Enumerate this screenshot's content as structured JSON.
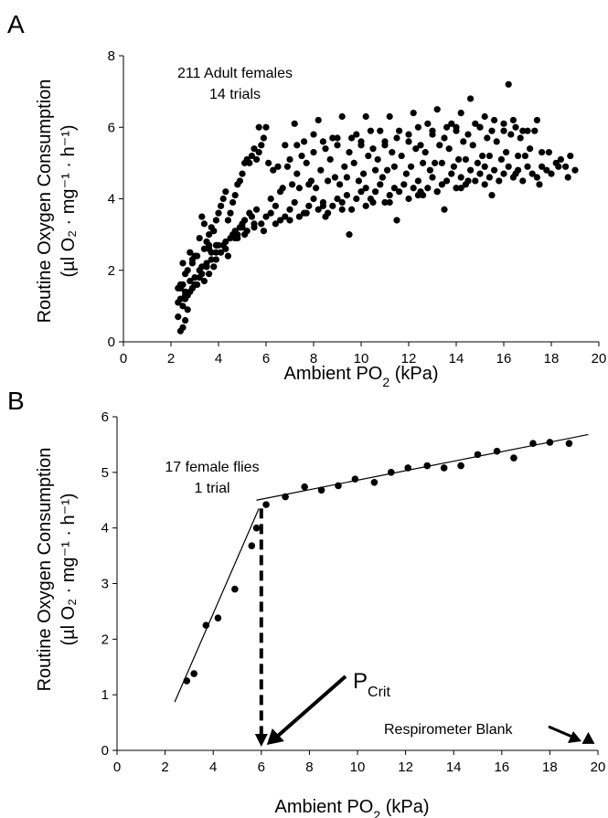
{
  "chart_data": [
    {
      "type": "scatter",
      "panel_label": "A",
      "annotation": [
        "211 Adult females",
        "14 trials"
      ],
      "xlabel": {
        "main": "Ambient PO",
        "sub": "2",
        "unit": " (kPa)"
      },
      "ylabel": {
        "line1": "Routine Oxygen Consumption",
        "line2": "(µl O₂ · mg⁻¹ · h⁻¹)"
      },
      "xlim": [
        0,
        20
      ],
      "ylim": [
        0,
        8
      ],
      "xticks": [
        0,
        2,
        4,
        6,
        8,
        10,
        12,
        14,
        16,
        18,
        20
      ],
      "yticks": [
        0,
        2,
        4,
        6,
        8
      ],
      "marker_color": "#000000",
      "series": [
        {
          "x": [
            2.3,
            2.5,
            2.4,
            2.6,
            2.7,
            2.4,
            2.5,
            2.6,
            2.4,
            2.3,
            2.7,
            2.8,
            2.6,
            2.5,
            2.9,
            3.0,
            3.1,
            3.2,
            3.3,
            3.0,
            2.8,
            2.9,
            3.4,
            3.5,
            3.6,
            3.7,
            3.2,
            3.4,
            3.6,
            3.3,
            3.8,
            3.9,
            4.0,
            4.1,
            4.2,
            4.3,
            3.5,
            3.7,
            4.4,
            4.5,
            4.6,
            4.7,
            4.8,
            4.9,
            5.0,
            5.1,
            5.2,
            5.3,
            5.4,
            5.5,
            5.6,
            5.7,
            5.8,
            5.9,
            6.0,
            4.8,
            5.0,
            5.2,
            5.5,
            5.8,
            6.0,
            6.2,
            6.4,
            6.6,
            6.8,
            7.0,
            7.2,
            7.4,
            7.6,
            7.8,
            8.0,
            8.2,
            8.4,
            8.6,
            8.8,
            9.0,
            9.2,
            9.4,
            9.6,
            9.8,
            10.0,
            10.2,
            10.4,
            10.6,
            10.8,
            11.0,
            11.2,
            11.4,
            11.6,
            11.8,
            12.0,
            12.2,
            12.4,
            12.6,
            12.8,
            13.0,
            13.2,
            13.4,
            13.6,
            13.8,
            14.0,
            14.2,
            14.4,
            14.6,
            14.8,
            15.0,
            15.2,
            15.4,
            15.6,
            15.8,
            16.0,
            16.2,
            16.4,
            16.6,
            16.8,
            17.0,
            17.2,
            17.4,
            17.6,
            17.8,
            18.0,
            18.2,
            18.4,
            18.6,
            18.8,
            19.0,
            6.1,
            6.5,
            7.0,
            7.5,
            8.0,
            8.5,
            9.0,
            9.5,
            10.0,
            10.5,
            11.0,
            11.5,
            12.0,
            12.5,
            13.0,
            13.5,
            14.0,
            14.5,
            15.0,
            15.5,
            16.0,
            16.5,
            17.0,
            6.3,
            6.9,
            7.3,
            7.7,
            8.3,
            8.7,
            9.3,
            9.7,
            10.3,
            10.7,
            11.3,
            11.7,
            12.3,
            12.7,
            13.3,
            13.7,
            14.3,
            14.7,
            15.3,
            15.7,
            16.3,
            16.7,
            17.3,
            6.7,
            7.1,
            7.9,
            8.1,
            8.9,
            9.1,
            9.9,
            10.1,
            10.9,
            11.1,
            11.9,
            12.1,
            12.9,
            13.1,
            13.9,
            14.1,
            14.9,
            15.1,
            15.9,
            16.1,
            16.9,
            17.1,
            17.9,
            5.7,
            7.2,
            8.2,
            9.2,
            10.2,
            11.2,
            12.2,
            13.2,
            14.2,
            15.2,
            16.2,
            7.3,
            8.4,
            9.6,
            10.8,
            12.4,
            13.8,
            14.6,
            16.4,
            4.2,
            4.6,
            5.0,
            5.4,
            4.4,
            4.8,
            5.6,
            3.9,
            4.1,
            4.3,
            4.5,
            4.7,
            4.9,
            5.1,
            5.3,
            2.6,
            2.8,
            3.0,
            3.2,
            2.7,
            2.9,
            3.1,
            3.3,
            3.5,
            3.7,
            3.9,
            4.0,
            2.5,
            2.4,
            2.6,
            2.3,
            3.4,
            3.6,
            3.8,
            6.2,
            6.6,
            7.4,
            7.8,
            8.6,
            9.4,
            10.6,
            11.4,
            12.6,
            13.4,
            14.4,
            15.4,
            16.6,
            17.6,
            18.3,
            18.7,
            6.8,
            7.6,
            8.8,
            9.8,
            10.4,
            11.6,
            12.8,
            13.6,
            14.8,
            15.6,
            16.8,
            17.4,
            8.0,
            9.0,
            10.0,
            11.0,
            12.0,
            13.0,
            14.0,
            15.0,
            16.0,
            9.5,
            11.5,
            13.5,
            15.5,
            17.5,
            8.5,
            10.5,
            12.5,
            14.5,
            16.5,
            6.4,
            7.0,
            7.7,
            8.4,
            9.2,
            10.2,
            11.2,
            12.4,
            13.2,
            14.2,
            15.2,
            5.9,
            5.5,
            5.1,
            4.7,
            4.3,
            3.9,
            3.6
          ],
          "y": [
            0.7,
            0.4,
            0.3,
            0.6,
            0.9,
            1.2,
            1.0,
            1.4,
            1.6,
            1.5,
            1.3,
            1.7,
            1.9,
            2.2,
            1.5,
            1.8,
            1.6,
            2.0,
            2.1,
            2.4,
            2.5,
            2.3,
            2.6,
            2.8,
            3.0,
            3.2,
            2.9,
            3.3,
            2.7,
            3.5,
            3.1,
            3.4,
            3.6,
            3.8,
            4.0,
            4.2,
            2.2,
            2.5,
            3.4,
            3.6,
            3.9,
            4.1,
            4.4,
            4.5,
            4.7,
            5.0,
            5.1,
            5.0,
            5.2,
            5.4,
            5.1,
            5.3,
            5.5,
            5.7,
            6.0,
            3.0,
            3.2,
            3.1,
            3.3,
            3.3,
            3.5,
            3.6,
            3.8,
            3.4,
            3.5,
            3.7,
            3.9,
            3.5,
            3.6,
            3.8,
            4.0,
            3.7,
            3.9,
            3.6,
            3.8,
            4.0,
            3.9,
            4.1,
            3.7,
            4.0,
            4.2,
            4.3,
            4.0,
            4.2,
            4.4,
            3.9,
            4.1,
            4.3,
            4.2,
            4.4,
            4.0,
            4.3,
            4.5,
            4.1,
            4.3,
            4.6,
            4.2,
            4.4,
            4.5,
            4.7,
            4.3,
            4.6,
            4.4,
            4.8,
            4.5,
            4.7,
            4.9,
            4.6,
            4.8,
            4.5,
            4.7,
            4.9,
            4.6,
            4.8,
            4.5,
            4.9,
            4.7,
            4.6,
            4.9,
            4.8,
            4.7,
            5.0,
            5.1,
            4.9,
            5.2,
            4.8,
            5.0,
            4.9,
            5.1,
            5.2,
            5.3,
            5.4,
            5.5,
            5.3,
            5.6,
            5.4,
            5.5,
            5.7,
            5.6,
            5.5,
            5.8,
            5.7,
            5.9,
            5.8,
            6.0,
            5.9,
            6.1,
            6.0,
            5.9,
            4.8,
            4.9,
            4.7,
            5.0,
            4.8,
            5.1,
            4.9,
            5.0,
            5.2,
            5.1,
            5.3,
            5.2,
            5.4,
            5.3,
            5.5,
            5.4,
            5.6,
            5.5,
            5.7,
            5.6,
            5.8,
            5.7,
            5.9,
            4.3,
            4.4,
            4.5,
            4.3,
            4.6,
            4.4,
            4.5,
            4.7,
            4.6,
            4.8,
            4.7,
            4.9,
            4.8,
            5.0,
            4.9,
            5.1,
            5.0,
            5.2,
            5.1,
            5.3,
            5.2,
            5.4,
            5.3,
            6.0,
            6.1,
            6.2,
            6.3,
            6.3,
            6.3,
            6.4,
            6.5,
            6.4,
            6.3,
            7.2,
            5.5,
            5.6,
            5.7,
            5.9,
            6.0,
            6.1,
            6.8,
            6.2,
            2.7,
            3.0,
            3.3,
            3.5,
            2.4,
            2.9,
            3.7,
            2.3,
            2.5,
            2.6,
            2.9,
            3.1,
            3.2,
            3.4,
            3.6,
            1.2,
            1.4,
            1.6,
            1.8,
            2.0,
            2.2,
            2.4,
            1.9,
            2.1,
            2.3,
            2.5,
            2.7,
            1.6,
            1.5,
            1.3,
            1.1,
            1.7,
            1.9,
            2.1,
            4.0,
            4.2,
            4.3,
            4.4,
            4.5,
            4.6,
            4.8,
            4.9,
            5.0,
            5.0,
            5.1,
            5.2,
            5.2,
            5.3,
            4.9,
            4.6,
            5.5,
            5.6,
            5.7,
            5.8,
            5.9,
            5.9,
            6.1,
            6.0,
            6.1,
            6.2,
            5.9,
            6.2,
            5.8,
            5.7,
            5.5,
            5.6,
            5.8,
            5.9,
            6.0,
            6.0,
            5.9,
            3.0,
            3.4,
            3.7,
            4.1,
            4.4,
            3.5,
            3.9,
            4.2,
            4.5,
            4.7,
            3.3,
            3.4,
            3.6,
            3.8,
            3.7,
            3.8,
            3.9,
            4.1,
            4.2,
            4.3,
            4.4,
            3.1,
            3.2,
            3.0,
            2.9,
            2.8,
            2.7,
            2.6
          ]
        }
      ]
    },
    {
      "type": "scatter",
      "panel_label": "B",
      "annotation": [
        "17 female flies",
        "1 trial"
      ],
      "xlabel": {
        "main": "Ambient PO",
        "sub": "2",
        "unit": " (kPa)"
      },
      "ylabel": {
        "line1": "Routine Oxygen Consumption",
        "line2": "(µl O₂ · mg⁻¹ · h⁻¹)"
      },
      "xlim": [
        0,
        20
      ],
      "ylim": [
        0,
        6
      ],
      "xticks": [
        0,
        2,
        4,
        6,
        8,
        10,
        12,
        14,
        16,
        18,
        20
      ],
      "yticks": [
        0,
        1,
        2,
        3,
        4,
        5,
        6
      ],
      "marker_color": "#000000",
      "series": [
        {
          "x": [
            2.9,
            3.2,
            3.7,
            4.2,
            4.9,
            5.6,
            5.8,
            6.2,
            7.0,
            7.8,
            8.5,
            9.2,
            9.9,
            10.7,
            11.4,
            12.1,
            12.9,
            13.6,
            14.3,
            15.0,
            15.8,
            16.5,
            17.3,
            18.0,
            18.8
          ],
          "y": [
            1.25,
            1.38,
            2.25,
            2.38,
            2.9,
            3.68,
            4.0,
            4.42,
            4.56,
            4.74,
            4.68,
            4.76,
            4.88,
            4.82,
            5.0,
            5.08,
            5.12,
            5.08,
            5.12,
            5.32,
            5.38,
            5.26,
            5.52,
            5.54,
            5.52
          ]
        }
      ],
      "fit_lines": [
        {
          "x": [
            2.4,
            5.9
          ],
          "y": [
            0.87,
            4.35
          ]
        },
        {
          "x": [
            5.8,
            19.6
          ],
          "y": [
            4.5,
            5.68
          ]
        }
      ],
      "pcrit": {
        "x": 6.0,
        "y_top": 4.35,
        "label_main": "P",
        "label_sub": "Crit"
      },
      "blank": {
        "x": 19.6,
        "y": 0.2,
        "label": "Respirometer Blank"
      }
    }
  ]
}
